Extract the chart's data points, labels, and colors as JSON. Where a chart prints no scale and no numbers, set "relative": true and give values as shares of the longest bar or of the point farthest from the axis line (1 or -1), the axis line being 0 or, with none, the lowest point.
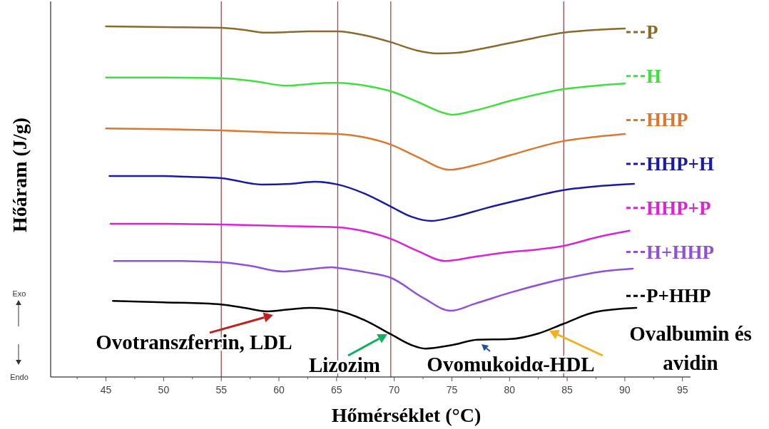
{
  "chart_data": {
    "type": "line",
    "relative": true,
    "xlabel": "Hőmérséklet (°C)",
    "ylabel": "Hőáram (J/g)",
    "legend": "right",
    "xlim": [
      40.2,
      95.7
    ],
    "xticks": [
      {
        "value": 42.5,
        "label": null
      },
      45,
      {
        "value": 47.5,
        "label": null
      },
      50,
      {
        "value": 52.5,
        "label": null
      },
      55,
      {
        "value": 57.5,
        "label": null
      },
      60,
      {
        "value": 62.5,
        "label": null
      },
      65,
      {
        "value": 67.5,
        "label": null
      },
      70,
      {
        "value": 72.5,
        "label": null
      },
      75,
      {
        "value": 77.5,
        "label": null
      },
      80,
      {
        "value": 82.5,
        "label": null
      },
      85,
      {
        "value": 87.5,
        "label": null
      },
      90,
      {
        "value": 92.5,
        "label": null
      },
      95
    ],
    "ref_lines": [
      {
        "axis": "x",
        "value": 55,
        "color": "#a04848"
      },
      {
        "axis": "x",
        "value": 65.1,
        "color": "#a04848"
      },
      {
        "axis": "x",
        "value": 69.7,
        "color": "#a04848"
      },
      {
        "axis": "x",
        "value": 84.7,
        "color": "#a04848"
      }
    ],
    "series": [
      {
        "name": "P",
        "color": "#8b6a2b",
        "x": [
          45,
          50,
          55,
          57,
          58.9,
          61,
          62.5,
          65.1,
          67.5,
          69.7,
          72,
          73.7,
          75.5,
          78,
          81,
          84.7,
          87.5,
          90
        ],
        "values": [
          1.0,
          0.998,
          0.996,
          0.99,
          0.982,
          0.984,
          0.986,
          0.986,
          0.974,
          0.955,
          0.931,
          0.923,
          0.925,
          0.939,
          0.959,
          0.982,
          0.99,
          0.994
        ]
      },
      {
        "name": "H",
        "color": "#3ee03e",
        "x": [
          45,
          50,
          55,
          58,
          60.6,
          62.5,
          64.3,
          65.1,
          67.5,
          69.7,
          72,
          74.2,
          75,
          77,
          80,
          84.7,
          87.5,
          90
        ],
        "values": [
          0.854,
          0.854,
          0.852,
          0.843,
          0.831,
          0.835,
          0.839,
          0.839,
          0.831,
          0.815,
          0.785,
          0.754,
          0.748,
          0.76,
          0.787,
          0.821,
          0.831,
          0.837
        ]
      },
      {
        "name": "HHP",
        "color": "#d9782f",
        "x": [
          45,
          50,
          55,
          60,
          65.1,
          67.5,
          69.7,
          72,
          74.8,
          77,
          80,
          84.7,
          87.5,
          90
        ],
        "values": [
          0.709,
          0.707,
          0.703,
          0.697,
          0.693,
          0.683,
          0.663,
          0.628,
          0.591,
          0.604,
          0.632,
          0.673,
          0.685,
          0.693
        ]
      },
      {
        "name": "HHP+H",
        "color": "#1a1aa8",
        "x": [
          45.3,
          50,
          52,
          55,
          58.5,
          61,
          63.1,
          65.1,
          67.5,
          69.7,
          71.5,
          73.2,
          75,
          78,
          81,
          84.7,
          88,
          90.8
        ],
        "values": [
          0.573,
          0.573,
          0.571,
          0.567,
          0.549,
          0.551,
          0.557,
          0.549,
          0.522,
          0.486,
          0.457,
          0.445,
          0.455,
          0.482,
          0.506,
          0.533,
          0.545,
          0.551
        ]
      },
      {
        "name": "HHP+P",
        "color": "#dd22d6",
        "x": [
          45.4,
          50,
          55,
          60,
          65.1,
          67.5,
          69.7,
          72,
          74.4,
          77,
          79.9,
          82.5,
          84.7,
          87.5,
          90.4
        ],
        "values": [
          0.437,
          0.437,
          0.435,
          0.431,
          0.427,
          0.415,
          0.394,
          0.36,
          0.331,
          0.343,
          0.356,
          0.364,
          0.374,
          0.398,
          0.417
        ]
      },
      {
        "name": "H+HHP",
        "color": "#9050d8",
        "x": [
          45.7,
          50,
          55,
          57.5,
          60.3,
          62.5,
          64.6,
          65.1,
          67.5,
          69.7,
          72.5,
          74.9,
          77,
          80,
          84.7,
          88,
          90.7
        ],
        "values": [
          0.331,
          0.331,
          0.327,
          0.317,
          0.301,
          0.307,
          0.313,
          0.311,
          0.299,
          0.283,
          0.226,
          0.189,
          0.209,
          0.24,
          0.28,
          0.301,
          0.309
        ]
      },
      {
        "name": "P+HHP",
        "color": "#000000",
        "x": [
          45.6,
          50,
          55,
          57,
          59,
          61,
          62.7,
          65.1,
          67.5,
          69.7,
          71.5,
          72.7,
          75,
          77.2,
          80,
          82.5,
          84.7,
          87.4,
          91
        ],
        "values": [
          0.217,
          0.213,
          0.207,
          0.197,
          0.187,
          0.193,
          0.197,
          0.189,
          0.161,
          0.122,
          0.091,
          0.081,
          0.091,
          0.106,
          0.108,
          0.124,
          0.152,
          0.185,
          0.197
        ]
      }
    ],
    "annotations": [
      {
        "text": "Ovotranszferrin, LDL",
        "x": 59.5,
        "y": 0.177
      },
      {
        "text": "Lizozim",
        "x": 69.4,
        "y": 0.122
      },
      "Ovomukoidα-HDL",
      "Ovalbumin és\navidin",
      "Exo",
      "Endo"
    ]
  }
}
